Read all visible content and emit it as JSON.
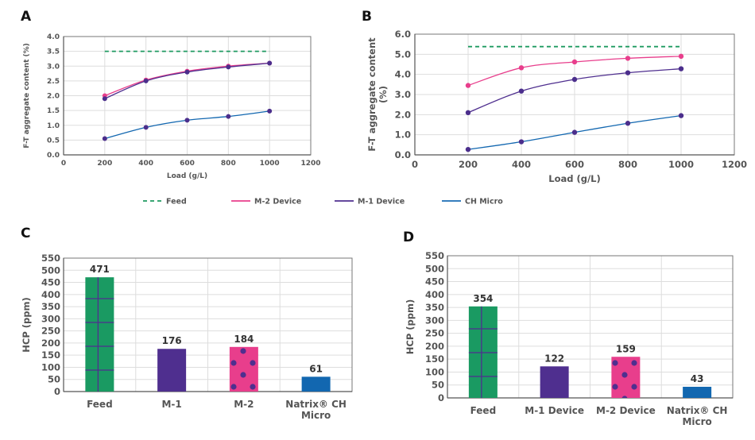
{
  "legend": {
    "entries": [
      {
        "name": "Feed",
        "color": "#1e9a60",
        "dashed": true
      },
      {
        "name": "M-2 Device",
        "color": "#e83e8c",
        "dashed": false
      },
      {
        "name": "M-1 Device",
        "color": "#4f2f8f",
        "dashed": false
      },
      {
        "name": "CH Micro",
        "color": "#1a6bb5",
        "dashed": false
      }
    ]
  },
  "colors": {
    "feed": "#1a9a62",
    "m1": "#4f2f8f",
    "m2": "#e83e8c",
    "ch": "#1267b0",
    "marker": "#4b2e8c",
    "grid": "#dddddd",
    "axis": "#555555"
  },
  "chart_data": [
    {
      "panel": "A",
      "type": "line",
      "title": "",
      "xlabel": "Load (g/L)",
      "ylabel": "F-T aggregate content (%)",
      "xlim": [
        0,
        1200
      ],
      "ylim": [
        0,
        4.0
      ],
      "xticks": [
        0,
        200,
        400,
        600,
        800,
        1000,
        1200
      ],
      "yticks": [
        "0.0",
        "0.5",
        "1.0",
        "1.5",
        "2.0",
        "2.5",
        "3.0",
        "3.5",
        "4.0"
      ],
      "grid": true,
      "x": [
        200,
        400,
        600,
        800,
        1000
      ],
      "series": [
        {
          "name": "Feed",
          "values": [
            3.5,
            3.5,
            3.5,
            3.5,
            3.5
          ],
          "style": "dashed",
          "markers": false
        },
        {
          "name": "M-2 Device",
          "values": [
            2.0,
            2.53,
            2.83,
            3.0,
            3.1
          ],
          "style": "solid",
          "markers": true
        },
        {
          "name": "M-1 Device",
          "values": [
            1.9,
            2.5,
            2.8,
            2.97,
            3.1
          ],
          "style": "solid",
          "markers": true
        },
        {
          "name": "CH Micro",
          "values": [
            0.55,
            0.93,
            1.17,
            1.3,
            1.48
          ],
          "style": "solid",
          "markers": true
        }
      ]
    },
    {
      "panel": "B",
      "type": "line",
      "title": "",
      "xlabel": "Load (g/L)",
      "ylabel": "F-T aggregate content (%)",
      "xlim": [
        0,
        1200
      ],
      "ylim": [
        0,
        6.0
      ],
      "xticks": [
        0,
        200,
        400,
        600,
        800,
        1000,
        1200
      ],
      "yticks": [
        "0.0",
        "1.0",
        "2.0",
        "3.0",
        "4.0",
        "5.0",
        "6.0"
      ],
      "grid": true,
      "x": [
        200,
        400,
        600,
        800,
        1000
      ],
      "series": [
        {
          "name": "Feed",
          "values": [
            5.38,
            5.38,
            5.38,
            5.38,
            5.38
          ],
          "style": "dashed",
          "markers": false
        },
        {
          "name": "M-2 Device",
          "values": [
            3.45,
            4.33,
            4.62,
            4.8,
            4.9
          ],
          "style": "solid",
          "markers": true
        },
        {
          "name": "M-1 Device",
          "values": [
            2.1,
            3.17,
            3.75,
            4.08,
            4.28
          ],
          "style": "solid",
          "markers": true
        },
        {
          "name": "CH Micro",
          "values": [
            0.27,
            0.65,
            1.12,
            1.57,
            1.95
          ],
          "style": "solid",
          "markers": true
        }
      ]
    },
    {
      "panel": "C",
      "type": "bar",
      "title": "",
      "xlabel": "",
      "ylabel": "HCP (ppm)",
      "ylim": [
        0,
        550
      ],
      "yticks": [
        0,
        50,
        100,
        150,
        200,
        250,
        300,
        350,
        400,
        450,
        500,
        550
      ],
      "grid": true,
      "categories": [
        [
          "Feed"
        ],
        [
          "M-1"
        ],
        [
          "M-2"
        ],
        [
          "Natrix® CH",
          "Micro"
        ]
      ],
      "values": [
        471,
        176,
        184,
        61
      ],
      "labels": [
        "471",
        "176",
        "184",
        "61"
      ],
      "bar_styles": [
        "feed-grid",
        "m1-solid",
        "m2-dots",
        "ch-solid"
      ]
    },
    {
      "panel": "D",
      "type": "bar",
      "title": "",
      "xlabel": "",
      "ylabel": "HCP (ppm)",
      "ylim": [
        0,
        550
      ],
      "yticks": [
        0,
        50,
        100,
        150,
        200,
        250,
        300,
        350,
        400,
        450,
        500,
        550
      ],
      "grid": true,
      "categories": [
        [
          "Feed"
        ],
        [
          "M-1 Device"
        ],
        [
          "M-2 Device"
        ],
        [
          "Natrix® CH",
          "Micro"
        ]
      ],
      "values": [
        354,
        122,
        159,
        43
      ],
      "labels": [
        "354",
        "122",
        "159",
        "43"
      ],
      "bar_styles": [
        "feed-grid",
        "m1-solid",
        "m2-dots",
        "ch-solid"
      ]
    }
  ]
}
